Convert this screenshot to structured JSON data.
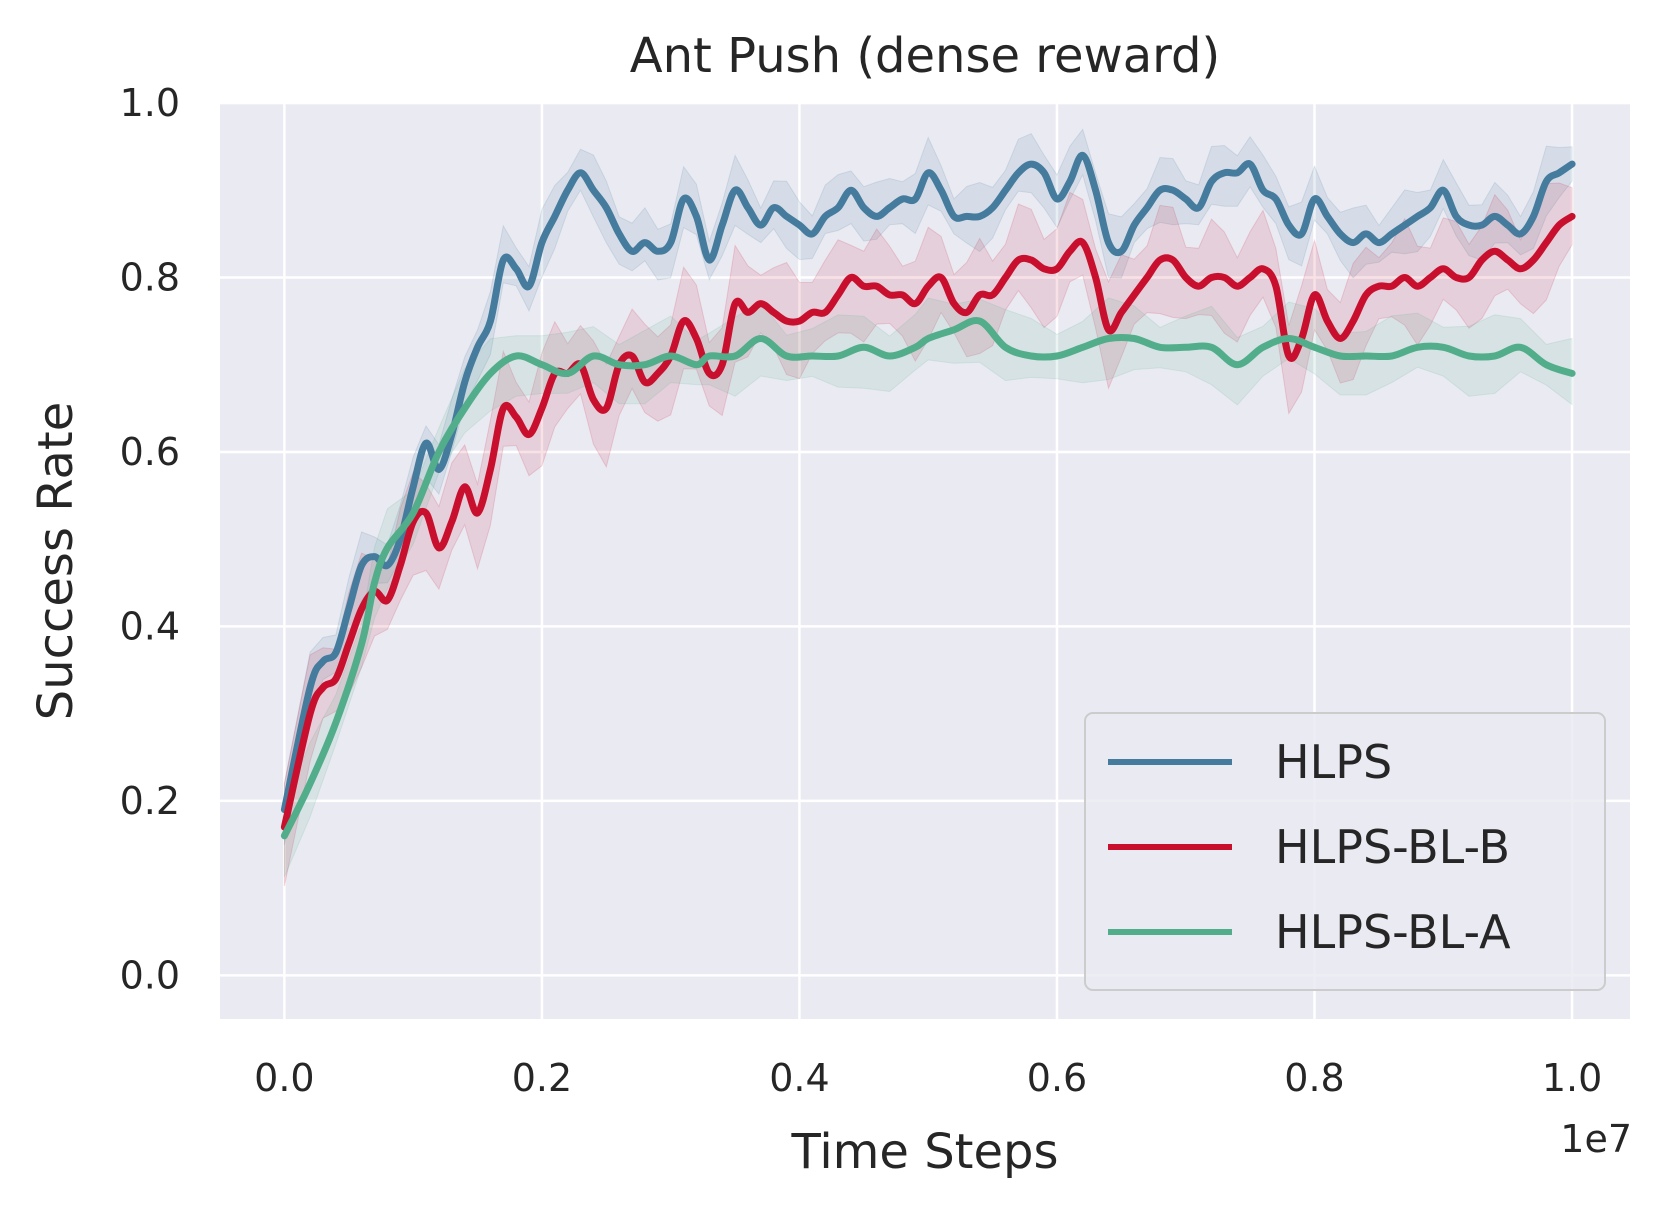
{
  "chart_data": {
    "type": "line",
    "title": "Ant Push (dense reward)",
    "xlabel": "Time Steps",
    "ylabel": "Success Rate",
    "x_offset_label": "1e7",
    "xlim": [
      -0.05,
      1.045
    ],
    "ylim": [
      -0.05,
      1.0
    ],
    "xticks": [
      0.0,
      0.2,
      0.4,
      0.6,
      0.8,
      1.0
    ],
    "xtick_labels": [
      "0.0",
      "0.2",
      "0.4",
      "0.6",
      "0.8",
      "1.0"
    ],
    "yticks": [
      0.0,
      0.2,
      0.4,
      0.6,
      0.8,
      1.0
    ],
    "ytick_labels": [
      "0.0",
      "0.2",
      "0.4",
      "0.6",
      "0.8",
      "1.0"
    ],
    "grid": true,
    "legend_position": "bottom-right",
    "series": [
      {
        "name": "HLPS",
        "color": "#457b9d",
        "band_halfwidth": 0.03,
        "points": [
          [
            0.0,
            0.19
          ],
          [
            0.02,
            0.33
          ],
          [
            0.03,
            0.36
          ],
          [
            0.04,
            0.37
          ],
          [
            0.05,
            0.42
          ],
          [
            0.06,
            0.47
          ],
          [
            0.07,
            0.48
          ],
          [
            0.08,
            0.47
          ],
          [
            0.09,
            0.5
          ],
          [
            0.1,
            0.56
          ],
          [
            0.11,
            0.61
          ],
          [
            0.12,
            0.58
          ],
          [
            0.13,
            0.62
          ],
          [
            0.14,
            0.68
          ],
          [
            0.15,
            0.72
          ],
          [
            0.16,
            0.75
          ],
          [
            0.17,
            0.82
          ],
          [
            0.18,
            0.81
          ],
          [
            0.19,
            0.79
          ],
          [
            0.2,
            0.84
          ],
          [
            0.21,
            0.87
          ],
          [
            0.22,
            0.9
          ],
          [
            0.23,
            0.92
          ],
          [
            0.24,
            0.9
          ],
          [
            0.25,
            0.88
          ],
          [
            0.26,
            0.85
          ],
          [
            0.27,
            0.83
          ],
          [
            0.28,
            0.84
          ],
          [
            0.29,
            0.83
          ],
          [
            0.3,
            0.84
          ],
          [
            0.31,
            0.89
          ],
          [
            0.32,
            0.87
          ],
          [
            0.33,
            0.82
          ],
          [
            0.34,
            0.86
          ],
          [
            0.35,
            0.9
          ],
          [
            0.36,
            0.88
          ],
          [
            0.37,
            0.86
          ],
          [
            0.38,
            0.88
          ],
          [
            0.39,
            0.87
          ],
          [
            0.4,
            0.86
          ],
          [
            0.41,
            0.85
          ],
          [
            0.42,
            0.87
          ],
          [
            0.43,
            0.88
          ],
          [
            0.44,
            0.9
          ],
          [
            0.45,
            0.88
          ],
          [
            0.46,
            0.87
          ],
          [
            0.47,
            0.88
          ],
          [
            0.48,
            0.89
          ],
          [
            0.49,
            0.89
          ],
          [
            0.5,
            0.92
          ],
          [
            0.51,
            0.9
          ],
          [
            0.52,
            0.87
          ],
          [
            0.53,
            0.87
          ],
          [
            0.54,
            0.87
          ],
          [
            0.55,
            0.88
          ],
          [
            0.56,
            0.9
          ],
          [
            0.57,
            0.92
          ],
          [
            0.58,
            0.93
          ],
          [
            0.59,
            0.92
          ],
          [
            0.6,
            0.89
          ],
          [
            0.61,
            0.91
          ],
          [
            0.62,
            0.94
          ],
          [
            0.63,
            0.9
          ],
          [
            0.64,
            0.84
          ],
          [
            0.65,
            0.83
          ],
          [
            0.66,
            0.86
          ],
          [
            0.67,
            0.88
          ],
          [
            0.68,
            0.9
          ],
          [
            0.69,
            0.9
          ],
          [
            0.7,
            0.89
          ],
          [
            0.71,
            0.88
          ],
          [
            0.72,
            0.91
          ],
          [
            0.73,
            0.92
          ],
          [
            0.74,
            0.92
          ],
          [
            0.75,
            0.93
          ],
          [
            0.76,
            0.9
          ],
          [
            0.77,
            0.89
          ],
          [
            0.78,
            0.86
          ],
          [
            0.79,
            0.85
          ],
          [
            0.8,
            0.89
          ],
          [
            0.81,
            0.87
          ],
          [
            0.82,
            0.85
          ],
          [
            0.83,
            0.84
          ],
          [
            0.84,
            0.85
          ],
          [
            0.85,
            0.84
          ],
          [
            0.86,
            0.85
          ],
          [
            0.87,
            0.86
          ],
          [
            0.88,
            0.87
          ],
          [
            0.89,
            0.88
          ],
          [
            0.9,
            0.9
          ],
          [
            0.91,
            0.87
          ],
          [
            0.92,
            0.86
          ],
          [
            0.93,
            0.86
          ],
          [
            0.94,
            0.87
          ],
          [
            0.95,
            0.86
          ],
          [
            0.96,
            0.85
          ],
          [
            0.97,
            0.87
          ],
          [
            0.98,
            0.91
          ],
          [
            0.99,
            0.92
          ],
          [
            1.0,
            0.93
          ]
        ]
      },
      {
        "name": "HLPS-BL-B",
        "color": "#c8102e",
        "band_halfwidth": 0.05,
        "points": [
          [
            0.0,
            0.17
          ],
          [
            0.02,
            0.3
          ],
          [
            0.03,
            0.33
          ],
          [
            0.04,
            0.34
          ],
          [
            0.05,
            0.38
          ],
          [
            0.06,
            0.42
          ],
          [
            0.07,
            0.44
          ],
          [
            0.08,
            0.43
          ],
          [
            0.09,
            0.47
          ],
          [
            0.1,
            0.52
          ],
          [
            0.11,
            0.53
          ],
          [
            0.12,
            0.49
          ],
          [
            0.13,
            0.52
          ],
          [
            0.14,
            0.56
          ],
          [
            0.15,
            0.53
          ],
          [
            0.16,
            0.58
          ],
          [
            0.17,
            0.65
          ],
          [
            0.18,
            0.64
          ],
          [
            0.19,
            0.62
          ],
          [
            0.2,
            0.65
          ],
          [
            0.21,
            0.69
          ],
          [
            0.22,
            0.69
          ],
          [
            0.23,
            0.7
          ],
          [
            0.24,
            0.66
          ],
          [
            0.25,
            0.65
          ],
          [
            0.26,
            0.7
          ],
          [
            0.27,
            0.71
          ],
          [
            0.28,
            0.68
          ],
          [
            0.29,
            0.69
          ],
          [
            0.3,
            0.71
          ],
          [
            0.31,
            0.75
          ],
          [
            0.32,
            0.73
          ],
          [
            0.33,
            0.69
          ],
          [
            0.34,
            0.7
          ],
          [
            0.35,
            0.77
          ],
          [
            0.36,
            0.76
          ],
          [
            0.37,
            0.77
          ],
          [
            0.38,
            0.76
          ],
          [
            0.39,
            0.75
          ],
          [
            0.4,
            0.75
          ],
          [
            0.41,
            0.76
          ],
          [
            0.42,
            0.76
          ],
          [
            0.43,
            0.78
          ],
          [
            0.44,
            0.8
          ],
          [
            0.45,
            0.79
          ],
          [
            0.46,
            0.79
          ],
          [
            0.47,
            0.78
          ],
          [
            0.48,
            0.78
          ],
          [
            0.49,
            0.77
          ],
          [
            0.5,
            0.79
          ],
          [
            0.51,
            0.8
          ],
          [
            0.52,
            0.77
          ],
          [
            0.53,
            0.76
          ],
          [
            0.54,
            0.78
          ],
          [
            0.55,
            0.78
          ],
          [
            0.56,
            0.8
          ],
          [
            0.57,
            0.82
          ],
          [
            0.58,
            0.82
          ],
          [
            0.59,
            0.81
          ],
          [
            0.6,
            0.81
          ],
          [
            0.61,
            0.83
          ],
          [
            0.62,
            0.84
          ],
          [
            0.63,
            0.8
          ],
          [
            0.64,
            0.74
          ],
          [
            0.65,
            0.76
          ],
          [
            0.66,
            0.78
          ],
          [
            0.67,
            0.8
          ],
          [
            0.68,
            0.82
          ],
          [
            0.69,
            0.82
          ],
          [
            0.7,
            0.8
          ],
          [
            0.71,
            0.79
          ],
          [
            0.72,
            0.8
          ],
          [
            0.73,
            0.8
          ],
          [
            0.74,
            0.79
          ],
          [
            0.75,
            0.8
          ],
          [
            0.76,
            0.81
          ],
          [
            0.77,
            0.79
          ],
          [
            0.78,
            0.71
          ],
          [
            0.79,
            0.73
          ],
          [
            0.8,
            0.78
          ],
          [
            0.81,
            0.75
          ],
          [
            0.82,
            0.73
          ],
          [
            0.83,
            0.75
          ],
          [
            0.84,
            0.78
          ],
          [
            0.85,
            0.79
          ],
          [
            0.86,
            0.79
          ],
          [
            0.87,
            0.8
          ],
          [
            0.88,
            0.79
          ],
          [
            0.89,
            0.8
          ],
          [
            0.9,
            0.81
          ],
          [
            0.91,
            0.8
          ],
          [
            0.92,
            0.8
          ],
          [
            0.93,
            0.82
          ],
          [
            0.94,
            0.83
          ],
          [
            0.95,
            0.82
          ],
          [
            0.96,
            0.81
          ],
          [
            0.97,
            0.82
          ],
          [
            0.98,
            0.84
          ],
          [
            0.99,
            0.86
          ],
          [
            1.0,
            0.87
          ]
        ]
      },
      {
        "name": "HLPS-BL-A",
        "color": "#52ad8a",
        "band_halfwidth": 0.035,
        "points": [
          [
            0.0,
            0.16
          ],
          [
            0.02,
            0.22
          ],
          [
            0.04,
            0.29
          ],
          [
            0.06,
            0.38
          ],
          [
            0.07,
            0.45
          ],
          [
            0.08,
            0.49
          ],
          [
            0.1,
            0.53
          ],
          [
            0.12,
            0.6
          ],
          [
            0.14,
            0.65
          ],
          [
            0.16,
            0.69
          ],
          [
            0.18,
            0.71
          ],
          [
            0.2,
            0.7
          ],
          [
            0.22,
            0.69
          ],
          [
            0.24,
            0.71
          ],
          [
            0.26,
            0.7
          ],
          [
            0.28,
            0.7
          ],
          [
            0.3,
            0.71
          ],
          [
            0.32,
            0.7
          ],
          [
            0.33,
            0.71
          ],
          [
            0.35,
            0.71
          ],
          [
            0.37,
            0.73
          ],
          [
            0.39,
            0.71
          ],
          [
            0.41,
            0.71
          ],
          [
            0.43,
            0.71
          ],
          [
            0.45,
            0.72
          ],
          [
            0.47,
            0.71
          ],
          [
            0.49,
            0.72
          ],
          [
            0.5,
            0.73
          ],
          [
            0.52,
            0.74
          ],
          [
            0.54,
            0.75
          ],
          [
            0.56,
            0.72
          ],
          [
            0.58,
            0.71
          ],
          [
            0.6,
            0.71
          ],
          [
            0.62,
            0.72
          ],
          [
            0.64,
            0.73
          ],
          [
            0.66,
            0.73
          ],
          [
            0.68,
            0.72
          ],
          [
            0.7,
            0.72
          ],
          [
            0.72,
            0.72
          ],
          [
            0.74,
            0.7
          ],
          [
            0.76,
            0.72
          ],
          [
            0.78,
            0.73
          ],
          [
            0.8,
            0.72
          ],
          [
            0.82,
            0.71
          ],
          [
            0.84,
            0.71
          ],
          [
            0.86,
            0.71
          ],
          [
            0.88,
            0.72
          ],
          [
            0.9,
            0.72
          ],
          [
            0.92,
            0.71
          ],
          [
            0.94,
            0.71
          ],
          [
            0.96,
            0.72
          ],
          [
            0.98,
            0.7
          ],
          [
            1.0,
            0.69
          ]
        ]
      }
    ]
  }
}
